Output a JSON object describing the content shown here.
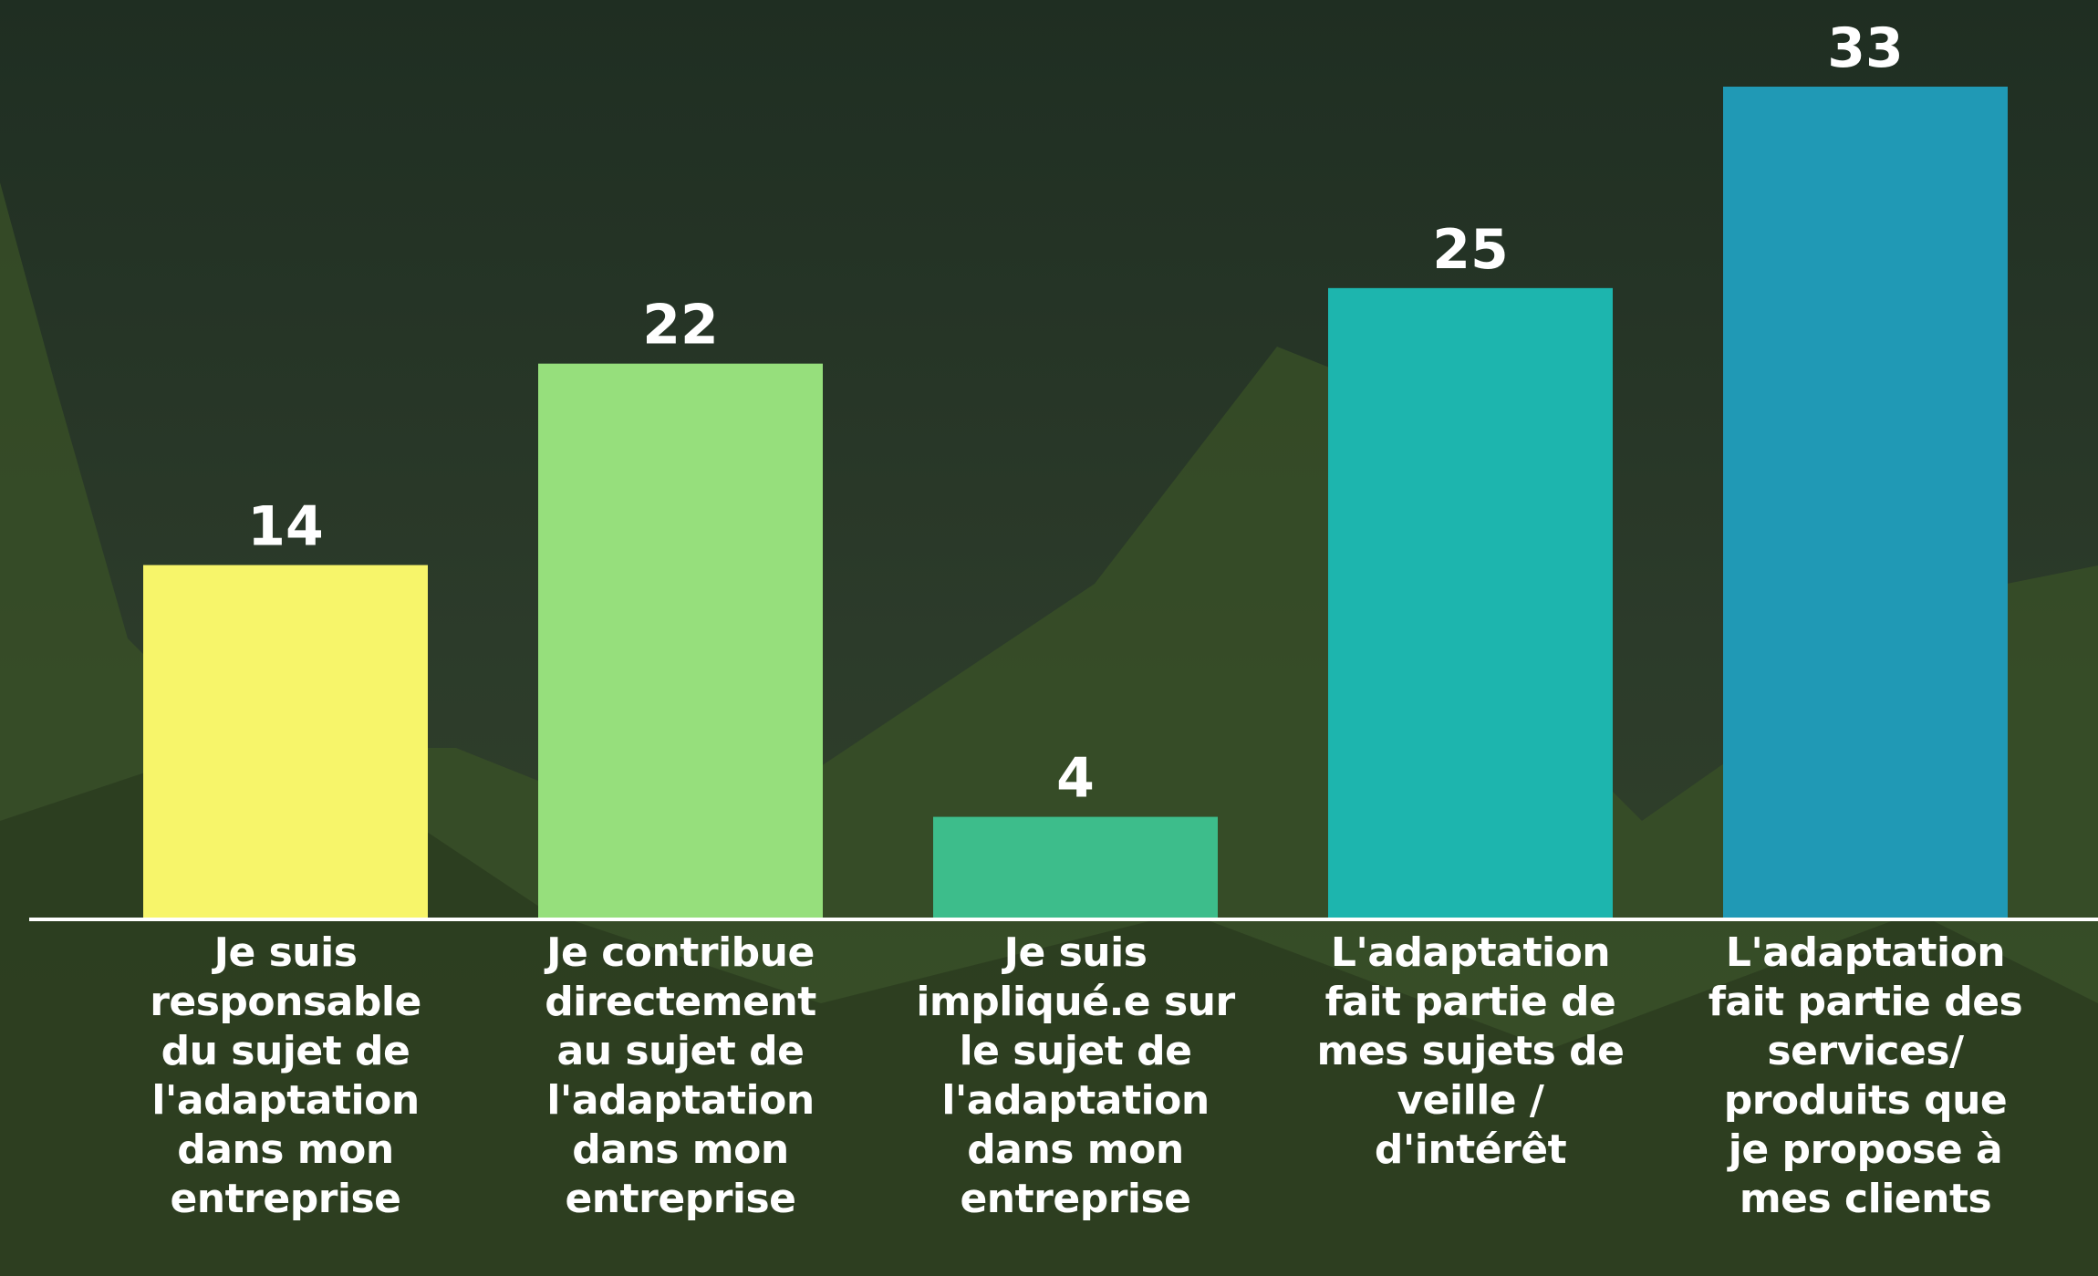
{
  "chart_data": {
    "type": "bar",
    "categories": [
      "Je suis responsable du sujet de l'adaptation dans mon entreprise",
      "Je contribue directement au sujet de l'adaptation dans mon entreprise",
      "Je suis impliqué.e sur le sujet de l'adaptation dans mon entreprise",
      "L'adaptation fait partie de mes sujets de veille / d'intérêt",
      "L'adaptation fait partie des services/ produits que je propose à mes clients"
    ],
    "values": [
      14,
      22,
      4,
      25,
      33
    ],
    "colors": [
      "#f7f56a",
      "#96df7c",
      "#3dbd8b",
      "#1db5ae",
      "#2099b5"
    ]
  }
}
